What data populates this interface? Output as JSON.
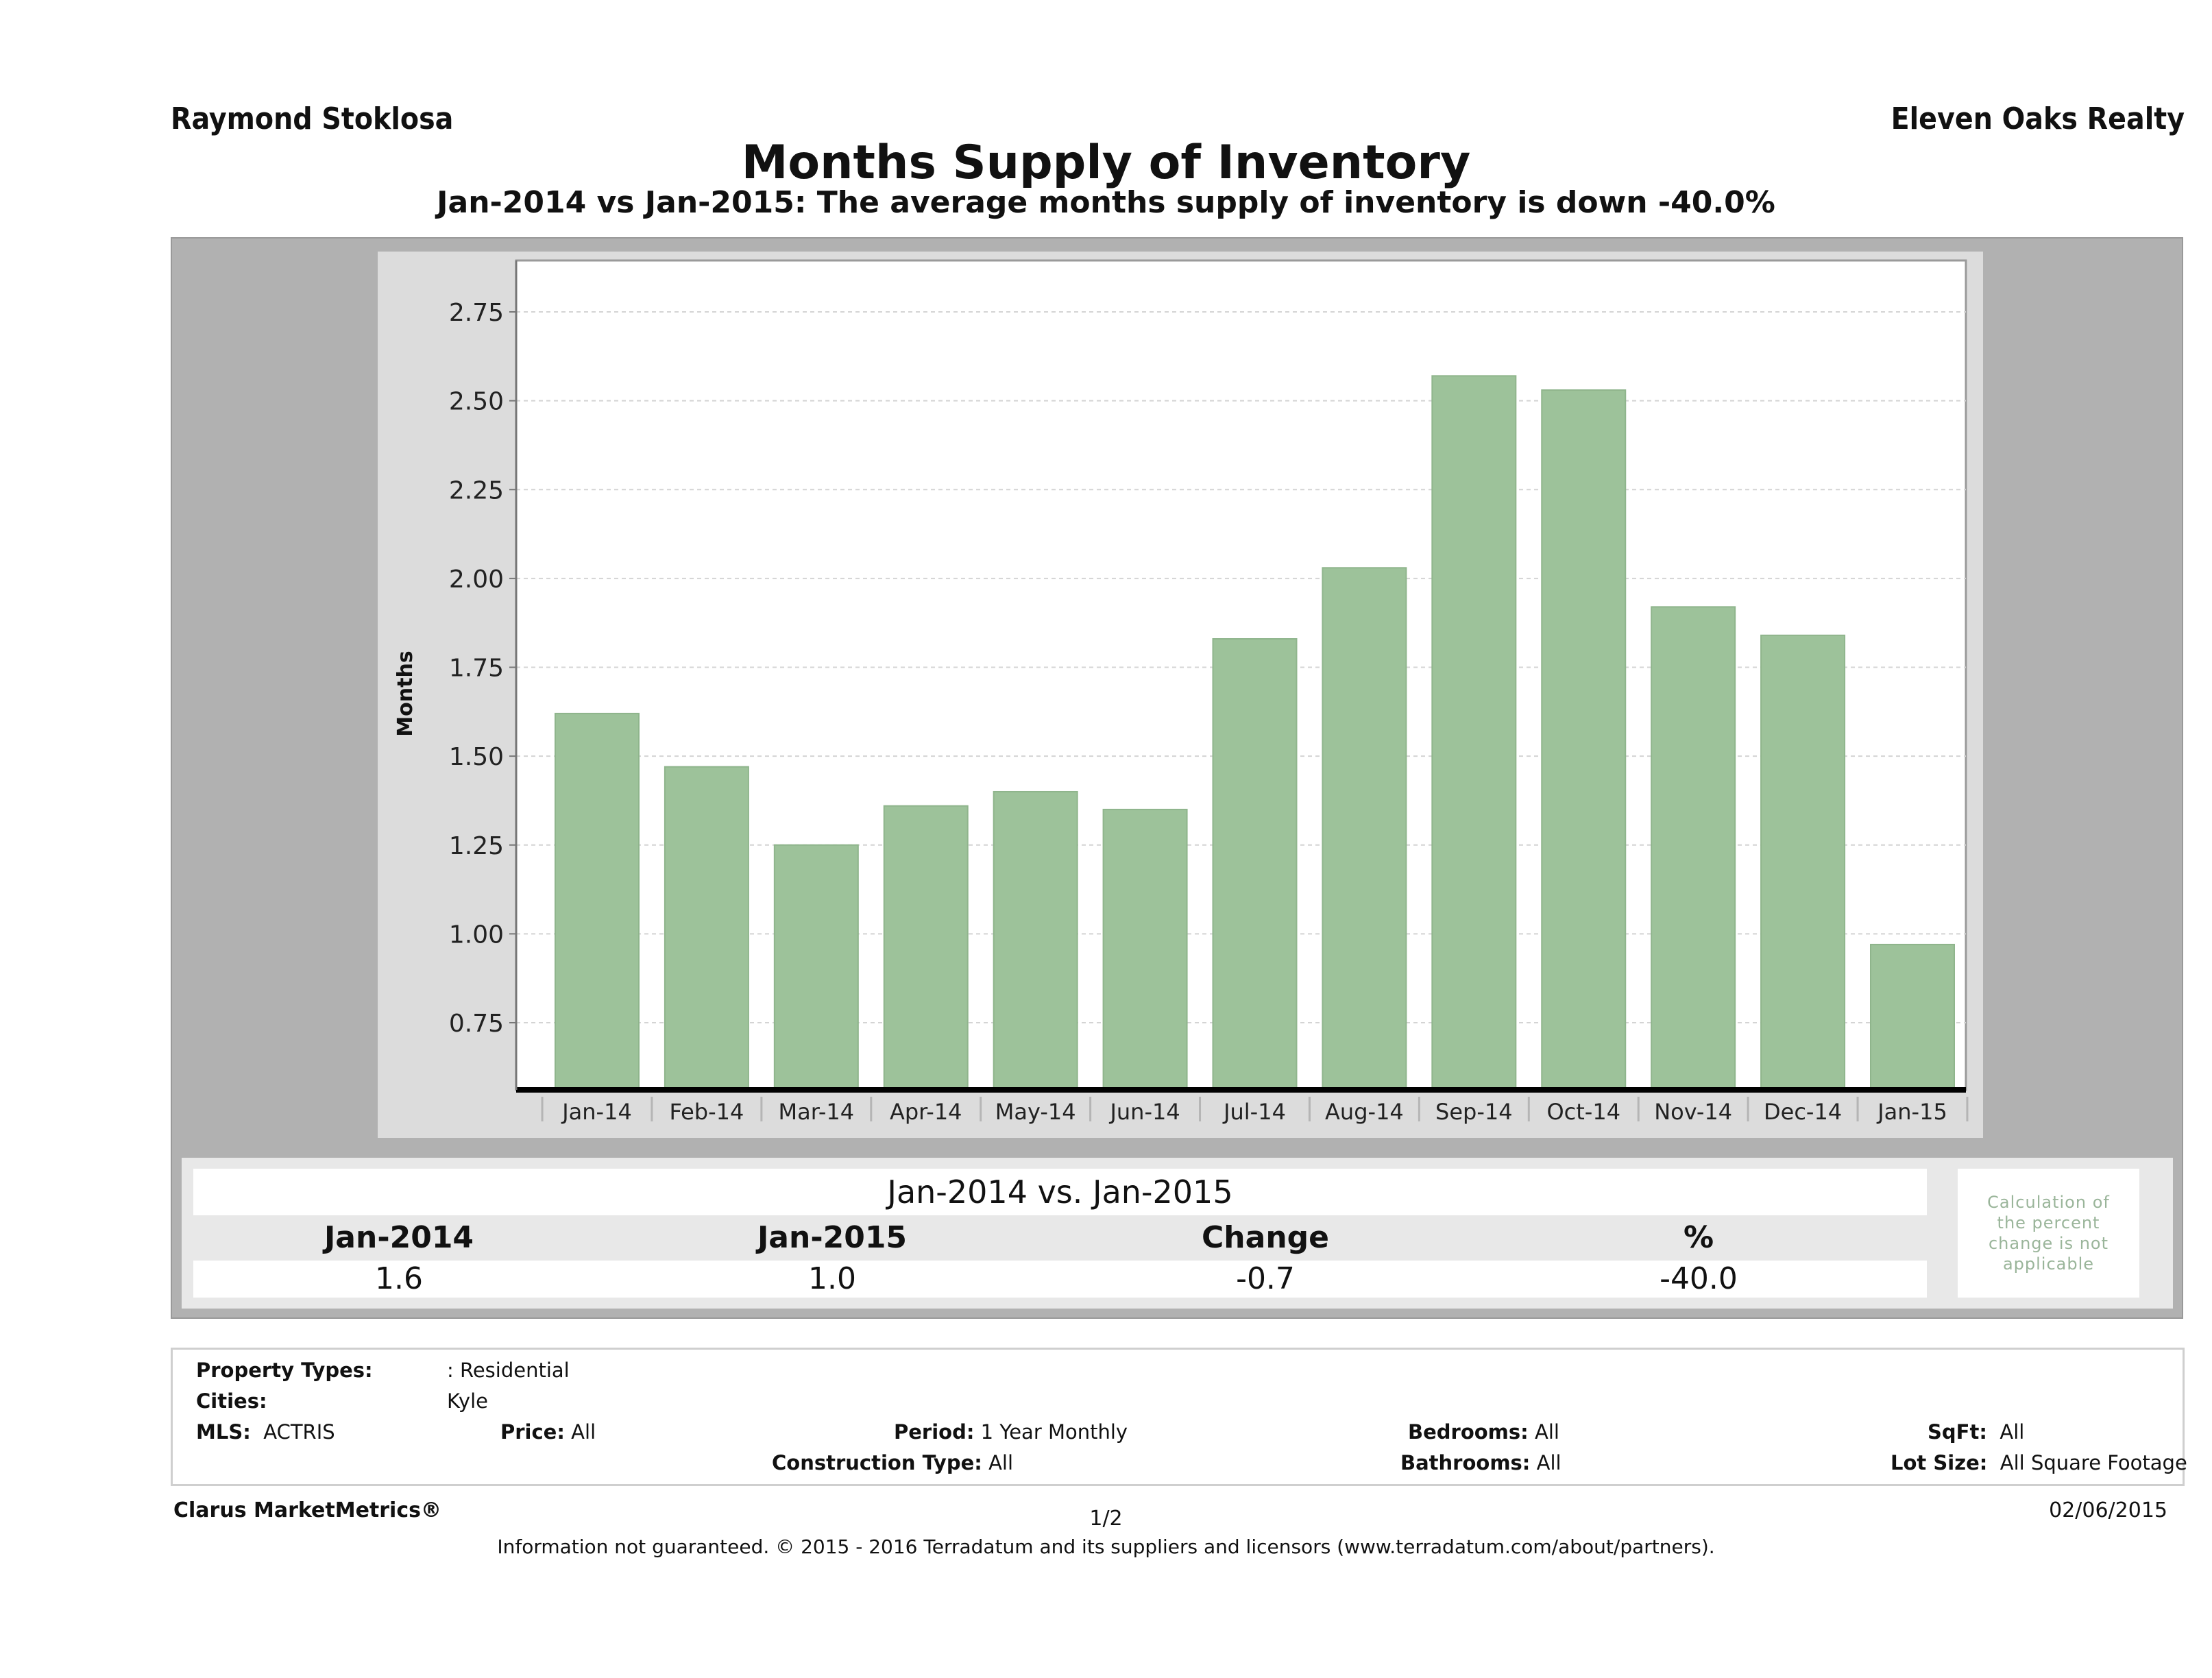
{
  "header": {
    "agent_name": "Raymond Stoklosa",
    "company_name": "Eleven Oaks Realty",
    "title": "Months Supply of Inventory",
    "subtitle": "Jan-2014 vs Jan-2015: The average months supply of inventory is down -40.0%"
  },
  "chart_data": {
    "type": "bar",
    "title": "Months Supply of Inventory",
    "xlabel": "",
    "ylabel": "Months",
    "categories": [
      "Jan-14",
      "Feb-14",
      "Mar-14",
      "Apr-14",
      "May-14",
      "Jun-14",
      "Jul-14",
      "Aug-14",
      "Sep-14",
      "Oct-14",
      "Nov-14",
      "Dec-14",
      "Jan-15"
    ],
    "values": [
      1.62,
      1.47,
      1.25,
      1.36,
      1.4,
      1.35,
      1.83,
      2.03,
      2.57,
      2.53,
      1.92,
      1.84,
      0.97
    ],
    "ylim": [
      0.55,
      2.9
    ],
    "yticks": [
      0.75,
      1.0,
      1.25,
      1.5,
      1.75,
      2.0,
      2.25,
      2.5,
      2.75
    ],
    "ytick_labels": [
      "0.75",
      "1.00",
      "1.25",
      "1.50",
      "1.75",
      "2.00",
      "2.25",
      "2.50",
      "2.75"
    ],
    "grid": true,
    "legend": "none",
    "bar_color": "#9dc29a"
  },
  "comparison_table": {
    "title": "Jan-2014 vs. Jan-2015",
    "headers": [
      "Jan-2014",
      "Jan-2015",
      "Change",
      "%"
    ],
    "values": [
      "1.6",
      "1.0",
      "-0.7",
      "-40.0"
    ],
    "note": "Calculation of the percent change is not applicable"
  },
  "filters": {
    "property_types_label": "Property Types:",
    "property_types_value": ": Residential",
    "cities_label": "Cities:",
    "cities_value": "Kyle",
    "mls_label": "MLS:",
    "mls_value": "ACTRIS",
    "price_label": "Price:",
    "price_value": "All",
    "period_label": "Period:",
    "period_value": "1 Year Monthly",
    "construction_label": "Construction Type:",
    "construction_value": "All",
    "bedrooms_label": "Bedrooms:",
    "bedrooms_value": "All",
    "bathrooms_label": "Bathrooms:",
    "bathrooms_value": "All",
    "sqft_label": "SqFt:",
    "sqft_value": "All",
    "lot_label": "Lot Size:",
    "lot_value": "All Square Footage"
  },
  "footer": {
    "brand": "Clarus MarketMetrics®",
    "page": "1/2",
    "date": "02/06/2015",
    "disclaimer": "Information not guaranteed. © 2015 - 2016 Terradatum and its suppliers and licensors (www.terradatum.com/about/partners)."
  }
}
